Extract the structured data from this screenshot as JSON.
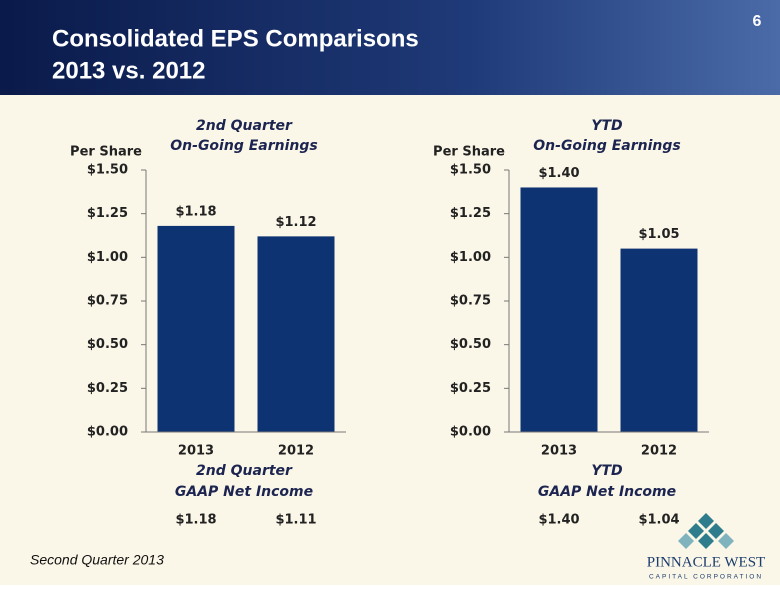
{
  "header": {
    "title": "Consolidated EPS Comparisons",
    "subtitle": "2013 vs. 2012",
    "page_number": 6
  },
  "chart_data": [
    {
      "type": "bar",
      "title": "2nd Quarter",
      "subtitle": "On-Going Earnings",
      "ylabel": "Per Share",
      "categories": [
        "2013",
        "2012"
      ],
      "values": [
        1.18,
        1.12
      ],
      "value_labels": [
        "$1.18",
        "$1.12"
      ],
      "color": "#0d3372",
      "ylim": [
        0,
        1.5
      ],
      "yticks": [
        {
          "value": 0,
          "label": "$0.00"
        },
        {
          "value": 0.25,
          "label": "$0.25"
        },
        {
          "value": 0.5,
          "label": "$0.50"
        },
        {
          "value": 0.75,
          "label": "$0.75"
        },
        {
          "value": 1,
          "label": "$1.00"
        },
        {
          "value": 1.25,
          "label": "$1.25"
        },
        {
          "value": 1.5,
          "label": "$1.50"
        }
      ],
      "gaap": {
        "title": "2nd Quarter",
        "subtitle": "GAAP Net Income",
        "values": [
          1.18,
          1.11
        ],
        "value_labels": [
          "$1.18",
          "$1.11"
        ]
      }
    },
    {
      "type": "bar",
      "title": "YTD",
      "subtitle": "On-Going Earnings",
      "ylabel": "Per Share",
      "categories": [
        "2013",
        "2012"
      ],
      "values": [
        1.4,
        1.05
      ],
      "value_labels": [
        "$1.40",
        "$1.05"
      ],
      "color": "#0d3372",
      "ylim": [
        0,
        1.5
      ],
      "yticks": [
        {
          "value": 0,
          "label": "$0.00"
        },
        {
          "value": 0.25,
          "label": "$0.25"
        },
        {
          "value": 0.5,
          "label": "$0.50"
        },
        {
          "value": 0.75,
          "label": "$0.75"
        },
        {
          "value": 1,
          "label": "$1.00"
        },
        {
          "value": 1.25,
          "label": "$1.25"
        },
        {
          "value": 1.5,
          "label": "$1.50"
        }
      ],
      "gaap": {
        "title": "YTD",
        "subtitle": "GAAP Net Income",
        "values": [
          1.4,
          1.04
        ],
        "value_labels": [
          "$1.40",
          "$1.04"
        ]
      }
    }
  ],
  "footer": {
    "text": "Second Quarter 2013",
    "logo_name": "PINNACLE WEST",
    "logo_tagline": "CAPITAL CORPORATION"
  }
}
